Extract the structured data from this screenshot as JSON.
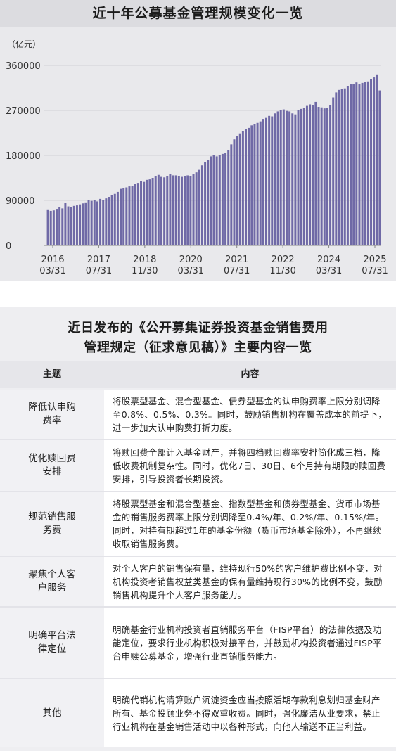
{
  "chart_data": {
    "type": "bar",
    "title": "近十年公募基金管理规模变化一览",
    "unit_label": "（亿元）",
    "ylim": [
      0,
      360000
    ],
    "yticks": [
      "0",
      "90000",
      "180000",
      "270000",
      "360000"
    ],
    "xticks": [
      {
        "year": "2016",
        "date": "03/31"
      },
      {
        "year": "2017",
        "date": "07/31"
      },
      {
        "year": "2018",
        "date": "11/30"
      },
      {
        "year": "2020",
        "date": "03/31"
      },
      {
        "year": "2021",
        "date": "07/31"
      },
      {
        "year": "2022",
        "date": "11/30"
      },
      {
        "year": "2024",
        "date": "03/31"
      },
      {
        "year": "2025",
        "date": "07/31"
      }
    ],
    "bar_color": "#6f69a6",
    "values": [
      72000,
      69000,
      70000,
      73000,
      76000,
      74000,
      85000,
      78000,
      77000,
      79000,
      80000,
      82000,
      84000,
      86000,
      90000,
      89000,
      91000,
      88000,
      93000,
      90000,
      94000,
      97000,
      100000,
      103000,
      107000,
      113000,
      114000,
      116000,
      118000,
      119000,
      123000,
      125000,
      128000,
      127000,
      131000,
      132000,
      135000,
      139000,
      141000,
      137000,
      136000,
      138000,
      142000,
      140000,
      140000,
      138000,
      137000,
      139000,
      140000,
      139000,
      142000,
      146000,
      151000,
      160000,
      166000,
      171000,
      178000,
      180000,
      178000,
      181000,
      183000,
      185000,
      190000,
      202000,
      212000,
      219000,
      224000,
      229000,
      232000,
      235000,
      240000,
      243000,
      245000,
      248000,
      253000,
      255000,
      259000,
      258000,
      264000,
      268000,
      271000,
      272000,
      269000,
      268000,
      264000,
      262000,
      270000,
      273000,
      275000,
      279000,
      282000,
      281000,
      287000,
      277000,
      276000,
      274000,
      275000,
      280000,
      296000,
      306000,
      311000,
      313000,
      314000,
      319000,
      322000,
      322000,
      326000,
      322000,
      325000,
      327000,
      328000,
      333000,
      336000,
      342000,
      310000
    ]
  },
  "table": {
    "title_line1": "近日发布的《公开募集证券投资基金销售费用",
    "title_line2": "管理规定（征求意见稿）》主要内容一览",
    "header_topic": "主题",
    "header_content": "内容",
    "rows": [
      {
        "topic": "降低认申购费率",
        "content": "将股票型基金、混合型基金、债券型基金的认申购费率上限分别调降至0.8%、0.5%、0.3%。同时，鼓励销售机构在覆盖成本的前提下，进一步加大认申购费打折力度。"
      },
      {
        "topic": "优化赎回费安排",
        "content": "将赎回费全部计入基金财产，并将四档赎回费率安排简化成三档，降低收费机制复杂性。同时，优化7日、30日、6个月持有期限的赎回费安排，引导投资者长期投资。"
      },
      {
        "topic": "规范销售服务费",
        "content": "将股票型基金和混合型基金、指数型基金和债券型基金、货币市场基金的销售服务费率上限分别调降至0.4%/年、0.2%/年、0.15%/年。同时，对持有期超过1年的基金份额（货币市场基金除外），不再继续收取销售服务费。"
      },
      {
        "topic": "聚焦个人客户服务",
        "content": "对个人客户的销售保有量，维持现行50%的客户维护费比例不变，对机构投资者销售权益类基金的保有量维持现行30%的比例不变，鼓励销售机构提升个人客户服务能力。"
      },
      {
        "topic": "明确平台法律定位",
        "content": "明确基金行业机构投资者直销服务平台（FISP平台）的法律依据及功能定位，要求行业机构积极对接平台，并鼓励机构投资者通过FISP平台申赎公募基金，增强行业直销服务能力。"
      },
      {
        "topic": "其他",
        "content": "明确代销机构清算账户沉淀资金应当按照活期存款利息划归基金财产所有、基金投顾业务不得双重收费。同时，强化廉洁从业要求，禁止行业机构在基金销售活动中以各种形式，向他人输送不正当利益。"
      }
    ]
  }
}
